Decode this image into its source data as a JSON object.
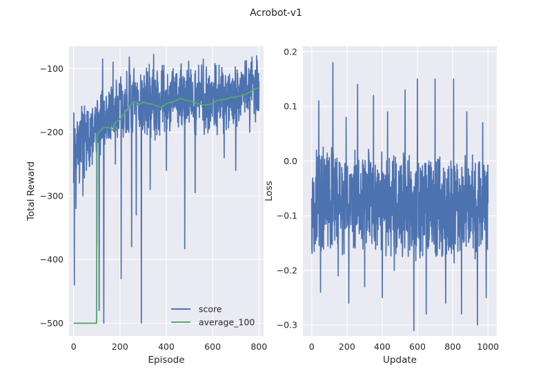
{
  "figure": {
    "title": "Acrobot-v1"
  },
  "colors": {
    "axes_bg": "#eaeaf2",
    "grid": "#ffffff",
    "score": "#4c72b0",
    "average": "#55a868"
  },
  "chart_data": [
    {
      "type": "line",
      "xlabel": "Episode",
      "ylabel": "Total Reward",
      "xlim": [
        -20,
        820
      ],
      "ylim": [
        -520,
        -65
      ],
      "xticks": [
        0,
        200,
        400,
        600,
        800
      ],
      "yticks": [
        -500,
        -400,
        -300,
        -200,
        -100
      ],
      "xtick_labels": [
        "0",
        "200",
        "400",
        "600",
        "800"
      ],
      "ytick_labels": [
        "−500",
        "−400",
        "−300",
        "−200",
        "−100"
      ],
      "grid": true,
      "legend": {
        "placement": "lower-right",
        "entries": [
          "score",
          "average_100"
        ]
      },
      "series": [
        {
          "name": "score",
          "color": "#4c72b0",
          "style": "noisy",
          "x_range": [
            0,
            800
          ],
          "n": 800,
          "seed": 7,
          "mean_profile": [
            [
              0,
              -220
            ],
            [
              100,
              -200
            ],
            [
              150,
              -175
            ],
            [
              200,
              -160
            ],
            [
              300,
              -152
            ],
            [
              400,
              -150
            ],
            [
              500,
              -145
            ],
            [
              600,
              -148
            ],
            [
              700,
              -140
            ],
            [
              800,
              -128
            ]
          ],
          "noise_amplitude": 45,
          "clip": [
            -500,
            -77
          ],
          "spikes": [
            [
              3,
              -440
            ],
            [
              10,
              -320
            ],
            [
              25,
              -280
            ],
            [
              40,
              -300
            ],
            [
              55,
              -260
            ],
            [
              100,
              -380
            ],
            [
              110,
              -480
            ],
            [
              130,
              -500
            ],
            [
              180,
              -250
            ],
            [
              205,
              -430
            ],
            [
              250,
              -380
            ],
            [
              270,
              -330
            ],
            [
              292,
              -500
            ],
            [
              330,
              -290
            ],
            [
              400,
              -260
            ],
            [
              480,
              -383
            ],
            [
              525,
              -295
            ],
            [
              650,
              -240
            ],
            [
              700,
              -260
            ],
            [
              760,
              -200
            ]
          ],
          "peaks": [
            [
              125,
              -85
            ],
            [
              170,
              -90
            ],
            [
              240,
              -82
            ],
            [
              345,
              -78
            ],
            [
              560,
              -85
            ],
            [
              610,
              -92
            ],
            [
              740,
              -88
            ],
            [
              770,
              -82
            ],
            [
              790,
              -80
            ]
          ]
        },
        {
          "name": "average_100",
          "color": "#55a868",
          "style": "piecewise",
          "points": [
            [
              0,
              -500
            ],
            [
              99,
              -500
            ],
            [
              100,
              -280
            ],
            [
              101,
              -205
            ],
            [
              110,
              -200
            ],
            [
              130,
              -193
            ],
            [
              150,
              -192
            ],
            [
              170,
              -197
            ],
            [
              180,
              -185
            ],
            [
              200,
              -180
            ],
            [
              220,
              -170
            ],
            [
              240,
              -160
            ],
            [
              260,
              -152
            ],
            [
              280,
              -157
            ],
            [
              300,
              -153
            ],
            [
              320,
              -155
            ],
            [
              340,
              -156
            ],
            [
              360,
              -159
            ],
            [
              380,
              -161
            ],
            [
              400,
              -155
            ],
            [
              420,
              -153
            ],
            [
              440,
              -151
            ],
            [
              460,
              -147
            ],
            [
              480,
              -149
            ],
            [
              500,
              -151
            ],
            [
              520,
              -153
            ],
            [
              540,
              -155
            ],
            [
              560,
              -157
            ],
            [
              580,
              -157
            ],
            [
              600,
              -155
            ],
            [
              620,
              -150
            ],
            [
              640,
              -149
            ],
            [
              660,
              -148
            ],
            [
              680,
              -145
            ],
            [
              700,
              -145
            ],
            [
              720,
              -143
            ],
            [
              740,
              -141
            ],
            [
              760,
              -137
            ],
            [
              780,
              -133
            ],
            [
              800,
              -130
            ]
          ]
        }
      ]
    },
    {
      "type": "line",
      "xlabel": "Update",
      "ylabel": "Loss",
      "xlim": [
        -50,
        1050
      ],
      "ylim": [
        -0.32,
        0.21
      ],
      "xticks": [
        0,
        200,
        400,
        600,
        800,
        1000
      ],
      "yticks": [
        -0.3,
        -0.2,
        -0.1,
        0.0,
        0.1,
        0.2
      ],
      "xtick_labels": [
        "0",
        "200",
        "400",
        "600",
        "800",
        "1000"
      ],
      "ytick_labels": [
        "−0.3",
        "−0.2",
        "−0.1",
        "0.0",
        "0.1",
        "0.2"
      ],
      "grid": true,
      "series": [
        {
          "color": "#4c72b0",
          "style": "noisy",
          "x_range": [
            0,
            1000
          ],
          "n": 1000,
          "seed": 13,
          "mean_profile": [
            [
              0,
              -0.07
            ],
            [
              500,
              -0.08
            ],
            [
              1000,
              -0.09
            ]
          ],
          "noise_amplitude": 0.075,
          "clip": [
            -0.3,
            0.17
          ],
          "spikes": [
            [
              22,
              -0.11
            ],
            [
              50,
              -0.24
            ],
            [
              150,
              -0.21
            ],
            [
              210,
              -0.26
            ],
            [
              300,
              -0.23
            ],
            [
              400,
              -0.25
            ],
            [
              468,
              -0.2
            ],
            [
              580,
              -0.31
            ],
            [
              650,
              -0.28
            ],
            [
              760,
              -0.26
            ],
            [
              850,
              -0.28
            ],
            [
              940,
              -0.3
            ],
            [
              990,
              -0.25
            ]
          ],
          "peaks": [
            [
              40,
              0.11
            ],
            [
              120,
              0.18
            ],
            [
              195,
              0.08
            ],
            [
              260,
              0.14
            ],
            [
              350,
              0.12
            ],
            [
              430,
              0.09
            ],
            [
              530,
              0.13
            ],
            [
              600,
              0.15
            ],
            [
              700,
              0.15
            ],
            [
              805,
              0.15
            ],
            [
              880,
              0.09
            ],
            [
              970,
              0.07
            ]
          ]
        }
      ]
    }
  ]
}
